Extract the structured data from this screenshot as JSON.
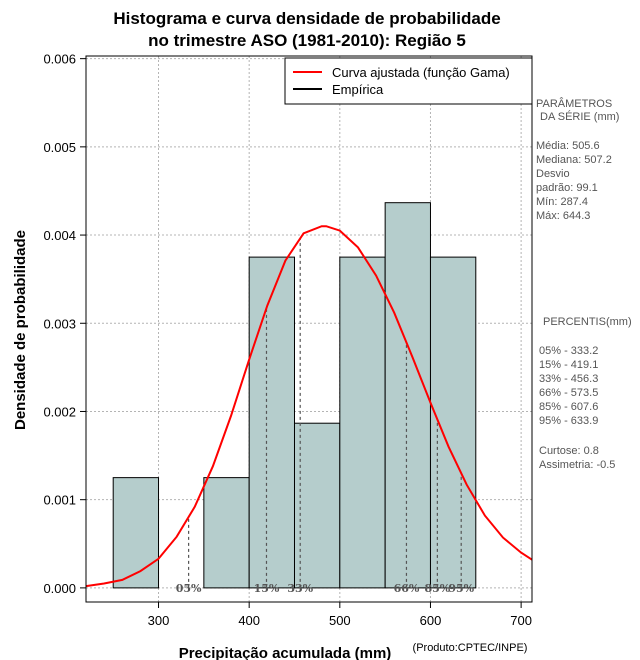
{
  "chart_data": {
    "type": "histogram",
    "title_line1": "Histograma e curva densidade de probabilidade",
    "title_line2": "no trimestre ASO (1981-2010): Região 5",
    "xlabel": "Precipitação acumulada (mm)",
    "ylabel": "Densidade de probabilidade",
    "credit": "(Produto:CPTEC/INPE)",
    "xlim": [
      220,
      712
    ],
    "ylim": [
      -0.00016,
      0.00603
    ],
    "x_ticks": [
      300,
      400,
      500,
      600,
      700
    ],
    "y_ticks": [
      0.0,
      0.001,
      0.002,
      0.003,
      0.004,
      0.005,
      0.006
    ],
    "y_tick_labels": [
      "0.000",
      "0.001",
      "0.002",
      "0.003",
      "0.004",
      "0.005",
      "0.006"
    ],
    "grid": true,
    "legend_position": "top-right",
    "bars": [
      {
        "x0": 250,
        "x1": 300,
        "density": 0.00125
      },
      {
        "x0": 350,
        "x1": 400,
        "density": 0.00125
      },
      {
        "x0": 400,
        "x1": 450,
        "density": 0.00375
      },
      {
        "x0": 450,
        "x1": 500,
        "density": 0.001867
      },
      {
        "x0": 500,
        "x1": 550,
        "density": 0.00375
      },
      {
        "x0": 550,
        "x1": 600,
        "density": 0.004367
      },
      {
        "x0": 600,
        "x1": 650,
        "density": 0.00375
      }
    ],
    "bar_color": "#b5cdcc",
    "fitted_curve": {
      "name": "Curva ajustada (função Gama)",
      "color": "#ff0000",
      "x": [
        220,
        240,
        260,
        280,
        300,
        320,
        340,
        360,
        380,
        400,
        420,
        440,
        460,
        480,
        485,
        500,
        520,
        540,
        560,
        580,
        600,
        620,
        640,
        660,
        680,
        700,
        712
      ],
      "y": [
        2e-05,
        5e-05,
        9e-05,
        0.00019,
        0.00033,
        0.00058,
        0.00092,
        0.00138,
        0.00195,
        0.00259,
        0.0032,
        0.00371,
        0.00402,
        0.0041,
        0.0041,
        0.00405,
        0.00386,
        0.00354,
        0.00312,
        0.00262,
        0.0021,
        0.0016,
        0.00117,
        0.00082,
        0.00057,
        0.0004,
        0.00032
      ]
    },
    "empirical_legend": "Empírica",
    "empirical_color": "#000000",
    "percentiles": [
      {
        "label": "05%",
        "value": 333.2
      },
      {
        "label": "15%",
        "value": 419.1
      },
      {
        "label": "33%",
        "value": 456.3
      },
      {
        "label": "66%",
        "value": 573.5
      },
      {
        "label": "85%",
        "value": 607.6
      },
      {
        "label": "95%",
        "value": 633.9
      }
    ]
  },
  "side_panel": {
    "params_title_1": "PARÂMETROS",
    "params_title_2": "DA SÉRIE (mm)",
    "mean": "Média:  505.6",
    "median": "Mediana:  507.2",
    "std_1": "Desvio",
    "std_2": "padrão:  99.1",
    "min": "Mín:  287.4",
    "max": "Máx:  644.3",
    "pct_title": "PERCENTIS(mm)",
    "p05": "05% -   333.2",
    "p15": "15% -   419.1",
    "p33": "33% -   456.3",
    "p66": "66% -   573.5",
    "p85": "85% -   607.6",
    "p95": "95% -   633.9",
    "kurtosis": "Curtose:  0.8",
    "skewness": "Assimetria:  -0.5"
  }
}
